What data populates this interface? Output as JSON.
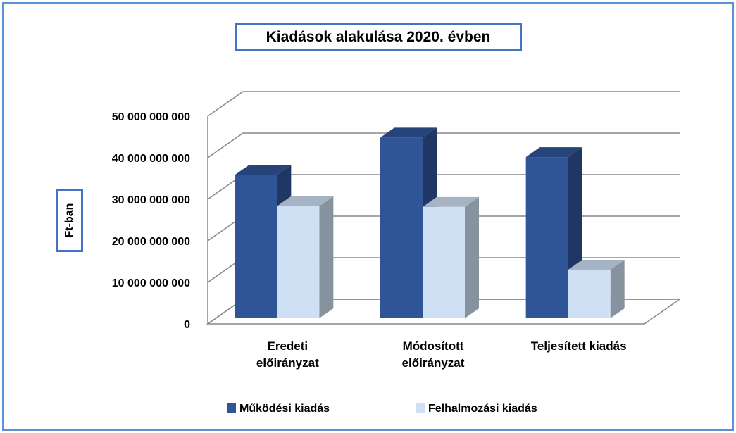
{
  "chart_data": {
    "type": "bar3d",
    "title": "Kiadások  alakulása 2020. évben",
    "y_label": "Ft-ban",
    "categories": [
      "Eredeti előirányzat",
      "Módosított előirányzat",
      "Teljesített kiadás"
    ],
    "series": [
      {
        "name": "Működési kiadás",
        "color": "#2f5597",
        "values": [
          34500000000,
          43500000000,
          38800000000
        ]
      },
      {
        "name": "Felhalmozási kiadás",
        "color": "#cfe0f5",
        "values": [
          27000000000,
          26800000000,
          11700000000
        ]
      }
    ],
    "ylim": [
      0,
      50000000000
    ],
    "yticks": [
      0,
      {
        "value": 10000000000,
        "label": "10 000 000 000"
      },
      {
        "value": 20000000000,
        "label": "20 000 000 000"
      },
      {
        "value": 30000000000,
        "label": "30 000 000 000"
      },
      {
        "value": 40000000000,
        "label": "40 000 000 000"
      },
      {
        "value": 50000000000,
        "label": "50 000 000 000"
      }
    ],
    "grid": true,
    "legend": "bottom"
  }
}
